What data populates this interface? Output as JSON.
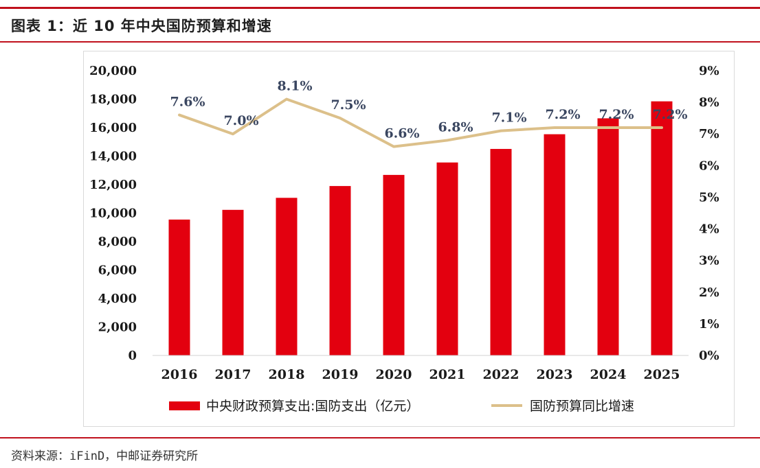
{
  "figure_title": "图表 1：近 10 年中央国防预算和增速",
  "source_text": "资料来源：iFinD，中邮证券研究所",
  "colors": {
    "bar": "#e3000f",
    "line": "#dcc08a",
    "rule": "#c0101c"
  },
  "chart_data": {
    "type": "bar",
    "categories": [
      "2016",
      "2017",
      "2018",
      "2019",
      "2020",
      "2021",
      "2022",
      "2023",
      "2024",
      "2025"
    ],
    "series": [
      {
        "name": "中央财政预算支出:国防支出（亿元）",
        "type": "bar",
        "axis": "left",
        "values": [
          9544,
          10226,
          11070,
          11899,
          12680,
          13553,
          14504,
          15537,
          16655,
          17847
        ]
      },
      {
        "name": "国防预算同比增速",
        "type": "line",
        "axis": "right",
        "values": [
          7.6,
          7.0,
          8.1,
          7.5,
          6.6,
          6.8,
          7.1,
          7.2,
          7.2,
          7.2
        ],
        "labels": [
          "7.6%",
          "7.0%",
          "8.1%",
          "7.5%",
          "6.6%",
          "6.8%",
          "7.1%",
          "7.2%",
          "7.2%",
          "7.2%"
        ]
      }
    ],
    "y_left": {
      "ylim": [
        0,
        20000
      ],
      "ticks": [
        "0",
        "2,000",
        "4,000",
        "6,000",
        "8,000",
        "10,000",
        "12,000",
        "14,000",
        "16,000",
        "18,000",
        "20,000"
      ]
    },
    "y_right": {
      "ylim": [
        0,
        9
      ],
      "ticks": [
        "0%",
        "1%",
        "2%",
        "3%",
        "4%",
        "5%",
        "6%",
        "7%",
        "8%",
        "9%"
      ]
    },
    "grid": false,
    "legend_position": "bottom"
  }
}
